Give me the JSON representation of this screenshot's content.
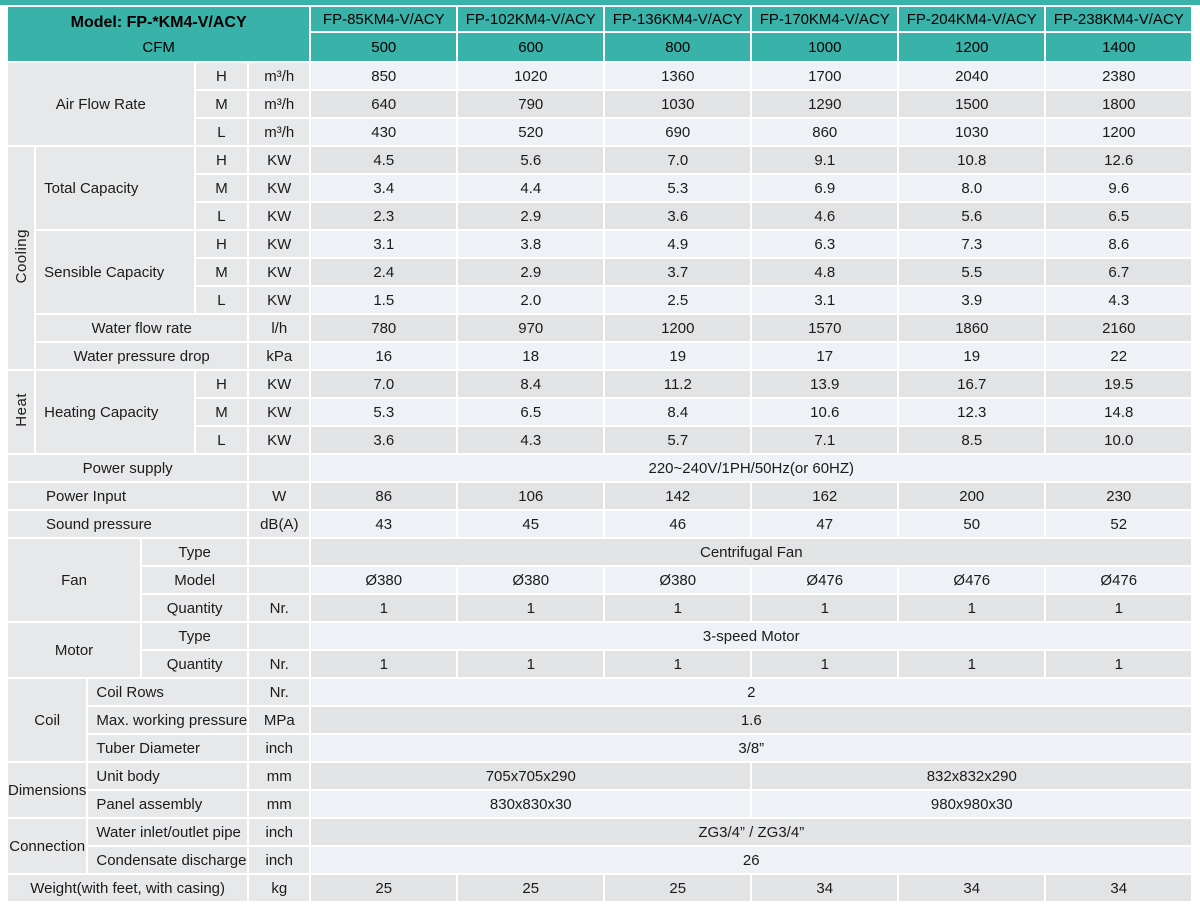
{
  "colors": {
    "teal": "#39b2aa",
    "row_light": "#eef2f6",
    "row_gray": "#e2e3e5",
    "label_bg": "#e7e8ea"
  },
  "header": {
    "model_title": "Model: FP-*KM4-V/ACY",
    "cfm_label": "CFM",
    "model_columns": [
      "FP-85KM4-V/ACY",
      "FP-102KM4-V/ACY",
      "FP-136KM4-V/ACY",
      "FP-170KM4-V/ACY",
      "FP-204KM4-V/ACY",
      "FP-238KM4-V/ACY"
    ],
    "cfm_values": [
      "500",
      "600",
      "800",
      "1000",
      "1200",
      "1400"
    ]
  },
  "rows": [
    {
      "bg": "light",
      "cells": [
        {
          "t": "Air Flow Rate",
          "y": "label",
          "cs": 4,
          "rs": 3
        },
        {
          "t": "H",
          "y": "speed"
        },
        {
          "t": "m³/h",
          "y": "unit"
        },
        {
          "t": "850"
        },
        {
          "t": "1020"
        },
        {
          "t": "1360"
        },
        {
          "t": "1700"
        },
        {
          "t": "2040"
        },
        {
          "t": "2380"
        }
      ]
    },
    {
      "bg": "gray",
      "cells": [
        {
          "t": "M",
          "y": "speed"
        },
        {
          "t": "m³/h",
          "y": "unit"
        },
        {
          "t": "640"
        },
        {
          "t": "790"
        },
        {
          "t": "1030"
        },
        {
          "t": "1290"
        },
        {
          "t": "1500"
        },
        {
          "t": "1800"
        }
      ]
    },
    {
      "bg": "light",
      "cells": [
        {
          "t": "L",
          "y": "speed"
        },
        {
          "t": "m³/h",
          "y": "unit"
        },
        {
          "t": "430"
        },
        {
          "t": "520"
        },
        {
          "t": "690"
        },
        {
          "t": "860"
        },
        {
          "t": "1030"
        },
        {
          "t": "1200"
        }
      ]
    },
    {
      "bg": "gray",
      "cells": [
        {
          "t": "Cooling",
          "y": "catVert",
          "rs": 8
        },
        {
          "t": "Total Capacity",
          "y": "labelLeft",
          "cs": 3,
          "rs": 3
        },
        {
          "t": "H",
          "y": "speed"
        },
        {
          "t": "KW",
          "y": "unit"
        },
        {
          "t": "4.5"
        },
        {
          "t": "5.6"
        },
        {
          "t": "7.0"
        },
        {
          "t": "9.1"
        },
        {
          "t": "10.8"
        },
        {
          "t": "12.6"
        }
      ]
    },
    {
      "bg": "light",
      "cells": [
        {
          "t": "M",
          "y": "speed"
        },
        {
          "t": "KW",
          "y": "unit"
        },
        {
          "t": "3.4"
        },
        {
          "t": "4.4"
        },
        {
          "t": "5.3"
        },
        {
          "t": "6.9"
        },
        {
          "t": "8.0"
        },
        {
          "t": "9.6"
        }
      ]
    },
    {
      "bg": "gray",
      "cells": [
        {
          "t": "L",
          "y": "speed"
        },
        {
          "t": "KW",
          "y": "unit"
        },
        {
          "t": "2.3"
        },
        {
          "t": "2.9"
        },
        {
          "t": "3.6"
        },
        {
          "t": "4.6"
        },
        {
          "t": "5.6"
        },
        {
          "t": "6.5"
        }
      ]
    },
    {
      "bg": "light",
      "cells": [
        {
          "t": "Sensible Capacity",
          "y": "labelLeft",
          "cs": 3,
          "rs": 3
        },
        {
          "t": "H",
          "y": "speed"
        },
        {
          "t": "KW",
          "y": "unit"
        },
        {
          "t": "3.1"
        },
        {
          "t": "3.8"
        },
        {
          "t": "4.9"
        },
        {
          "t": "6.3"
        },
        {
          "t": "7.3"
        },
        {
          "t": "8.6"
        }
      ]
    },
    {
      "bg": "gray",
      "cells": [
        {
          "t": "M",
          "y": "speed"
        },
        {
          "t": "KW",
          "y": "unit"
        },
        {
          "t": "2.4"
        },
        {
          "t": "2.9"
        },
        {
          "t": "3.7"
        },
        {
          "t": "4.8"
        },
        {
          "t": "5.5"
        },
        {
          "t": "6.7"
        }
      ]
    },
    {
      "bg": "light",
      "cells": [
        {
          "t": "L",
          "y": "speed"
        },
        {
          "t": "KW",
          "y": "unit"
        },
        {
          "t": "1.5"
        },
        {
          "t": "2.0"
        },
        {
          "t": "2.5"
        },
        {
          "t": "3.1"
        },
        {
          "t": "3.9"
        },
        {
          "t": "4.3"
        }
      ]
    },
    {
      "bg": "gray",
      "cells": [
        {
          "t": "Water flow rate",
          "y": "label",
          "cs": 4
        },
        {
          "t": "l/h",
          "y": "unit"
        },
        {
          "t": "780"
        },
        {
          "t": "970"
        },
        {
          "t": "1200"
        },
        {
          "t": "1570"
        },
        {
          "t": "1860"
        },
        {
          "t": "2160"
        }
      ]
    },
    {
      "bg": "light",
      "cells": [
        {
          "t": "Water pressure drop",
          "y": "label",
          "cs": 4
        },
        {
          "t": "kPa",
          "y": "unit"
        },
        {
          "t": "16"
        },
        {
          "t": "18"
        },
        {
          "t": "19"
        },
        {
          "t": "17"
        },
        {
          "t": "19"
        },
        {
          "t": "22"
        }
      ]
    },
    {
      "bg": "gray",
      "cells": [
        {
          "t": "Heat",
          "y": "catVert",
          "rs": 3
        },
        {
          "t": "Heating Capacity",
          "y": "labelLeft",
          "cs": 3,
          "rs": 3
        },
        {
          "t": "H",
          "y": "speed"
        },
        {
          "t": "KW",
          "y": "unit"
        },
        {
          "t": "7.0"
        },
        {
          "t": "8.4"
        },
        {
          "t": "11.2"
        },
        {
          "t": "13.9"
        },
        {
          "t": "16.7"
        },
        {
          "t": "19.5"
        }
      ]
    },
    {
      "bg": "light",
      "cells": [
        {
          "t": "M",
          "y": "speed"
        },
        {
          "t": "KW",
          "y": "unit"
        },
        {
          "t": "5.3"
        },
        {
          "t": "6.5"
        },
        {
          "t": "8.4"
        },
        {
          "t": "10.6"
        },
        {
          "t": "12.3"
        },
        {
          "t": "14.8"
        }
      ]
    },
    {
      "bg": "gray",
      "cells": [
        {
          "t": "L",
          "y": "speed"
        },
        {
          "t": "KW",
          "y": "unit"
        },
        {
          "t": "3.6"
        },
        {
          "t": "4.3"
        },
        {
          "t": "5.7"
        },
        {
          "t": "7.1"
        },
        {
          "t": "8.5"
        },
        {
          "t": "10.0"
        }
      ]
    },
    {
      "bg": "light",
      "cells": [
        {
          "t": "Power supply",
          "y": "label",
          "cs": 5
        },
        {
          "t": "",
          "y": "unit"
        },
        {
          "t": "220~240V/1PH/50Hz(or 60HZ)",
          "cs": 6
        }
      ]
    },
    {
      "bg": "gray",
      "cells": [
        {
          "t": "Power Input",
          "y": "label",
          "cs": 5,
          "indent": true
        },
        {
          "t": "W",
          "y": "unit"
        },
        {
          "t": "86"
        },
        {
          "t": "106"
        },
        {
          "t": "142"
        },
        {
          "t": "162"
        },
        {
          "t": "200"
        },
        {
          "t": "230"
        }
      ]
    },
    {
      "bg": "light",
      "cells": [
        {
          "t": "Sound pressure",
          "y": "label",
          "cs": 5,
          "indent": true
        },
        {
          "t": "dB(A)",
          "y": "unit"
        },
        {
          "t": "43"
        },
        {
          "t": "45"
        },
        {
          "t": "46"
        },
        {
          "t": "47"
        },
        {
          "t": "50"
        },
        {
          "t": "52"
        }
      ]
    },
    {
      "bg": "gray",
      "cells": [
        {
          "t": "Fan",
          "y": "label",
          "cs": 3,
          "rs": 3
        },
        {
          "t": "Type",
          "y": "label",
          "cs": 2
        },
        {
          "t": "",
          "y": "unit"
        },
        {
          "t": "Centrifugal Fan",
          "cs": 6
        }
      ]
    },
    {
      "bg": "light",
      "cells": [
        {
          "t": "Model",
          "y": "label",
          "cs": 2
        },
        {
          "t": "",
          "y": "unit"
        },
        {
          "t": "Ø380"
        },
        {
          "t": "Ø380"
        },
        {
          "t": "Ø380"
        },
        {
          "t": "Ø476"
        },
        {
          "t": "Ø476"
        },
        {
          "t": "Ø476"
        }
      ]
    },
    {
      "bg": "gray",
      "cells": [
        {
          "t": "Quantity",
          "y": "label",
          "cs": 2
        },
        {
          "t": "Nr.",
          "y": "unit"
        },
        {
          "t": "1"
        },
        {
          "t": "1"
        },
        {
          "t": "1"
        },
        {
          "t": "1"
        },
        {
          "t": "1"
        },
        {
          "t": "1"
        }
      ]
    },
    {
      "bg": "light",
      "cells": [
        {
          "t": "Motor",
          "y": "label",
          "cs": 3,
          "rs": 2
        },
        {
          "t": "Type",
          "y": "label",
          "cs": 2
        },
        {
          "t": "",
          "y": "unit"
        },
        {
          "t": "3-speed Motor",
          "cs": 6
        }
      ]
    },
    {
      "bg": "gray",
      "cells": [
        {
          "t": "Quantity",
          "y": "label",
          "cs": 2
        },
        {
          "t": "Nr.",
          "y": "unit"
        },
        {
          "t": "1"
        },
        {
          "t": "1"
        },
        {
          "t": "1"
        },
        {
          "t": "1"
        },
        {
          "t": "1"
        },
        {
          "t": "1"
        }
      ]
    },
    {
      "bg": "light",
      "cells": [
        {
          "t": "Coil",
          "y": "label",
          "cs": 2,
          "rs": 3
        },
        {
          "t": "Coil Rows",
          "y": "labelLeft",
          "cs": 3
        },
        {
          "t": "Nr.",
          "y": "unit"
        },
        {
          "t": "2",
          "cs": 6
        }
      ]
    },
    {
      "bg": "gray",
      "cells": [
        {
          "t": "Max. working pressure",
          "y": "labelLeft",
          "cs": 3
        },
        {
          "t": "MPa",
          "y": "unit"
        },
        {
          "t": "1.6",
          "cs": 6
        }
      ]
    },
    {
      "bg": "light",
      "cells": [
        {
          "t": "Tuber Diameter",
          "y": "labelLeft",
          "cs": 3
        },
        {
          "t": "inch",
          "y": "unit"
        },
        {
          "t": "3/8”",
          "cs": 6
        }
      ]
    },
    {
      "bg": "gray",
      "cells": [
        {
          "t": "Dimensions",
          "y": "label",
          "cs": 2,
          "rs": 2
        },
        {
          "t": "Unit body",
          "y": "labelLeft",
          "cs": 3
        },
        {
          "t": "mm",
          "y": "unit"
        },
        {
          "t": "705x705x290",
          "cs": 3
        },
        {
          "t": "832x832x290",
          "cs": 3
        }
      ]
    },
    {
      "bg": "light",
      "cells": [
        {
          "t": "Panel assembly",
          "y": "labelLeft",
          "cs": 3
        },
        {
          "t": "mm",
          "y": "unit"
        },
        {
          "t": "830x830x30",
          "cs": 3
        },
        {
          "t": "980x980x30",
          "cs": 3
        }
      ]
    },
    {
      "bg": "gray",
      "cells": [
        {
          "t": "Connection",
          "y": "label",
          "cs": 2,
          "rs": 2
        },
        {
          "t": "Water inlet/outlet pipe",
          "y": "labelLeft",
          "cs": 3
        },
        {
          "t": "inch",
          "y": "unit"
        },
        {
          "t": "ZG3/4” / ZG3/4”",
          "cs": 6
        }
      ]
    },
    {
      "bg": "light",
      "cells": [
        {
          "t": "Condensate discharge",
          "y": "labelLeft",
          "cs": 3
        },
        {
          "t": "inch",
          "y": "unit"
        },
        {
          "t": "26",
          "cs": 6
        }
      ]
    },
    {
      "bg": "gray",
      "cells": [
        {
          "t": "Weight(with feet, with casing)",
          "y": "label",
          "cs": 5
        },
        {
          "t": "kg",
          "y": "unit"
        },
        {
          "t": "25"
        },
        {
          "t": "25"
        },
        {
          "t": "25"
        },
        {
          "t": "34"
        },
        {
          "t": "34"
        },
        {
          "t": "34"
        }
      ]
    }
  ]
}
